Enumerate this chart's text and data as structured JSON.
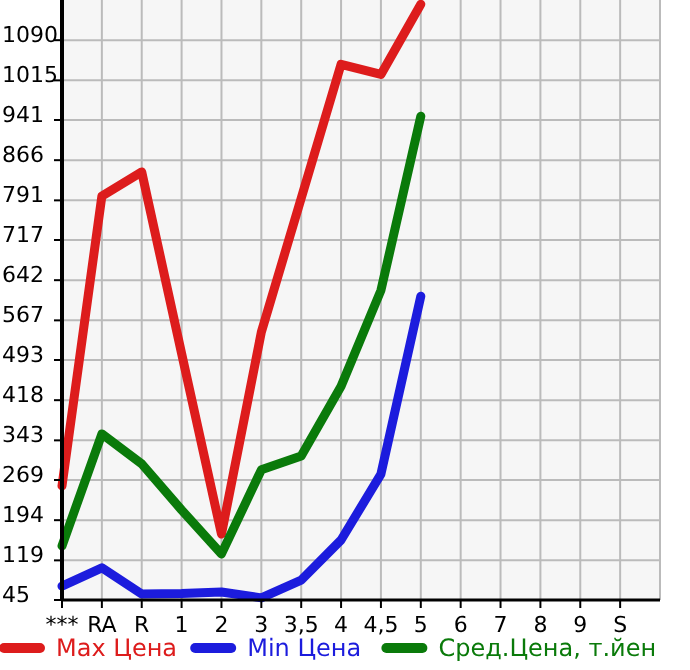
{
  "chart_data": {
    "type": "line",
    "categories": [
      "***",
      "RA",
      "R",
      "1",
      "2",
      "3",
      "3,5",
      "4",
      "4,5",
      "5",
      "6",
      "7",
      "8",
      "9",
      "S"
    ],
    "series": [
      {
        "name": "Max Цена",
        "color": "#dd1c1c",
        "values": [
          258,
          799,
          844,
          505,
          168,
          545,
          795,
          1045,
          1026,
          1157,
          null,
          null,
          null,
          null,
          null
        ]
      },
      {
        "name": "Min Цена",
        "color": "#1c1cdd",
        "values": [
          71,
          105,
          56,
          57,
          60,
          49,
          82,
          157,
          280,
          612,
          null,
          null,
          null,
          null,
          null
        ]
      },
      {
        "name": "Сред.Цена, т.йен",
        "color": "#0a7a0a",
        "values": [
          146,
          355,
          299,
          213,
          131,
          288,
          314,
          444,
          623,
          948,
          null,
          null,
          null,
          null,
          null
        ]
      }
    ],
    "ylim": [
      45,
      1165
    ],
    "yticks": [
      45,
      119,
      194,
      269,
      343,
      418,
      493,
      567,
      642,
      717,
      791,
      866,
      941,
      1015,
      1090
    ],
    "grid": true,
    "legend": "bottom",
    "marker": "none",
    "line_style": "solid"
  }
}
